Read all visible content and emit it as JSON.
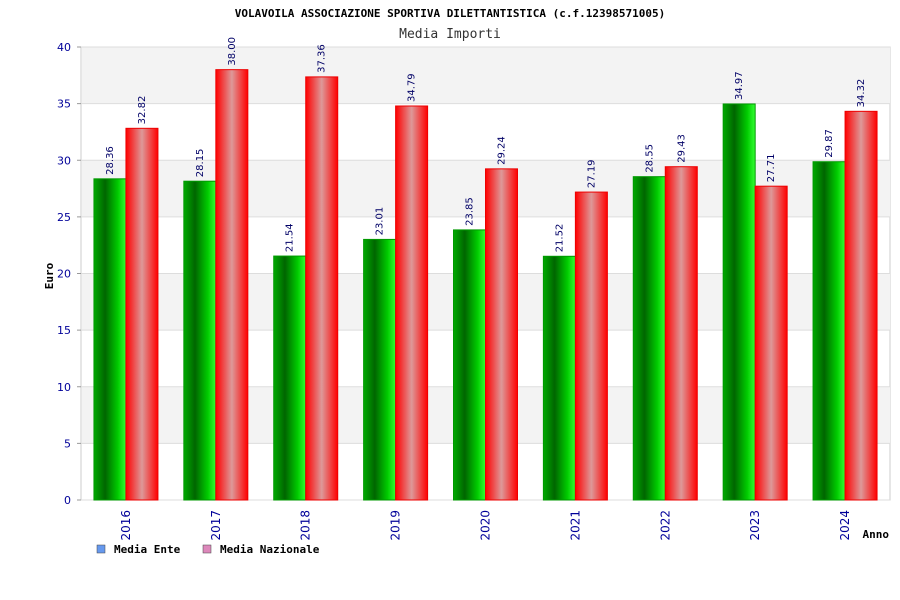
{
  "chart_data": {
    "type": "bar",
    "title": "VOLAVOILA ASSOCIAZIONE SPORTIVA DILETTANTISTICA (c.f.12398571005)",
    "subtitle": "Media Importi",
    "xlabel": "Anno",
    "ylabel": "Euro",
    "ylim": [
      0,
      40
    ],
    "yticks": [
      0,
      5,
      10,
      15,
      20,
      25,
      30,
      35,
      40
    ],
    "categories": [
      "2016",
      "2017",
      "2018",
      "2019",
      "2020",
      "2021",
      "2022",
      "2023",
      "2024"
    ],
    "series": [
      {
        "name": "Media Ente",
        "values": [
          28.36,
          28.15,
          21.54,
          23.01,
          23.85,
          21.52,
          28.55,
          34.97,
          29.87
        ],
        "labels": [
          "28.36",
          "28.15",
          "21.54",
          "23.01",
          "23.85",
          "21.52",
          "28.55",
          "34.97",
          "29.87"
        ],
        "color": "#00aa00",
        "legend_color": "#6699ee"
      },
      {
        "name": "Media Nazionale",
        "values": [
          32.82,
          38.0,
          37.36,
          34.79,
          29.24,
          27.19,
          29.43,
          27.71,
          34.32
        ],
        "labels": [
          "32.82",
          "38.00",
          "37.36",
          "34.79",
          "29.24",
          "27.19",
          "29.43",
          "27.71",
          "34.32"
        ],
        "color": "#ff0000",
        "legend_color": "#dd88bb"
      }
    ],
    "grid": true,
    "legend_position": "bottom-left"
  }
}
